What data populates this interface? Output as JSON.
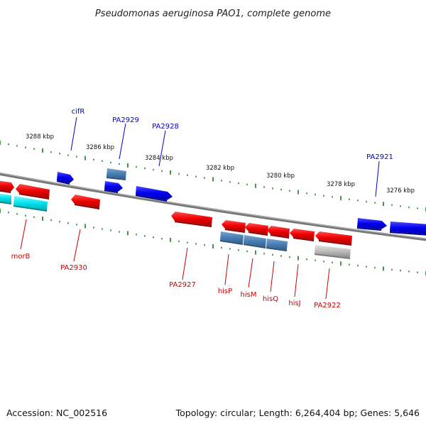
{
  "title": "Pseudomonas aeruginosa PAO1, complete genome",
  "footer": {
    "accession": "Accession: NC_002516",
    "topology": "Topology: circular; Length: 6,264,404 bp; Genes: 5,646"
  },
  "colors": {
    "forward_gene": "#0000ee",
    "forward_steel": "#4a7fb5",
    "reverse_gene": "#ee0000",
    "reverse_cyan": "#00e5ee",
    "reverse_steel": "#4a7fb5",
    "reverse_gray": "#bbbbbb",
    "backbone": "#888888",
    "tick": "#1a7a1a",
    "forward_label": "#0000cc",
    "reverse_label": "#cc0000"
  },
  "scale_ticks": [
    "3288 kbp",
    "3286 kbp",
    "3284 kbp",
    "3282 kbp",
    "3280 kbp",
    "3278 kbp",
    "3276 kbp"
  ],
  "forward_labels": [
    "cifR",
    "PA2929",
    "PA2928",
    "PA2921"
  ],
  "reverse_labels": [
    "morB",
    "PA2930",
    "PA2927",
    "hisP",
    "hisM",
    "hisQ",
    "hisJ",
    "PA2922"
  ]
}
